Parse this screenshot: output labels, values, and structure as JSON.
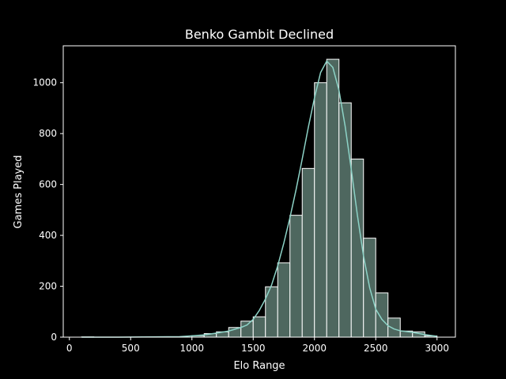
{
  "chart_data": {
    "type": "bar",
    "title": "Benko Gambit Declined",
    "xlabel": "Elo Range",
    "ylabel": "Games Played",
    "xlim": [
      -50,
      3150
    ],
    "ylim": [
      0,
      1145
    ],
    "xticks": [
      0,
      500,
      1000,
      1500,
      2000,
      2500,
      3000
    ],
    "yticks": [
      0,
      200,
      400,
      600,
      800,
      1000
    ],
    "grid": false,
    "bin_width": 100,
    "bins": [
      {
        "x0": 100,
        "value": 1
      },
      {
        "x0": 200,
        "value": 0
      },
      {
        "x0": 300,
        "value": 0
      },
      {
        "x0": 400,
        "value": 0
      },
      {
        "x0": 500,
        "value": 0
      },
      {
        "x0": 600,
        "value": 0
      },
      {
        "x0": 700,
        "value": 0
      },
      {
        "x0": 800,
        "value": 0
      },
      {
        "x0": 900,
        "value": 0
      },
      {
        "x0": 1000,
        "value": 6
      },
      {
        "x0": 1100,
        "value": 14
      },
      {
        "x0": 1200,
        "value": 21
      },
      {
        "x0": 1300,
        "value": 38
      },
      {
        "x0": 1400,
        "value": 63
      },
      {
        "x0": 1500,
        "value": 80
      },
      {
        "x0": 1600,
        "value": 198
      },
      {
        "x0": 1700,
        "value": 292
      },
      {
        "x0": 1800,
        "value": 479
      },
      {
        "x0": 1900,
        "value": 663
      },
      {
        "x0": 2000,
        "value": 1000
      },
      {
        "x0": 2100,
        "value": 1092
      },
      {
        "x0": 2200,
        "value": 921
      },
      {
        "x0": 2300,
        "value": 700
      },
      {
        "x0": 2400,
        "value": 389
      },
      {
        "x0": 2500,
        "value": 174
      },
      {
        "x0": 2600,
        "value": 75
      },
      {
        "x0": 2700,
        "value": 24
      },
      {
        "x0": 2800,
        "value": 21
      },
      {
        "x0": 2900,
        "value": 5
      }
    ],
    "kde": {
      "x": [
        100,
        400,
        700,
        900,
        1000,
        1100,
        1200,
        1300,
        1400,
        1450,
        1500,
        1550,
        1600,
        1650,
        1700,
        1750,
        1800,
        1850,
        1900,
        1950,
        2000,
        2050,
        2100,
        2150,
        2200,
        2250,
        2300,
        2350,
        2400,
        2450,
        2500,
        2550,
        2600,
        2650,
        2700,
        2800,
        2900,
        3000
      ],
      "y": [
        0,
        0,
        1,
        2,
        5,
        9,
        16,
        24,
        38,
        48,
        70,
        105,
        150,
        205,
        280,
        370,
        470,
        580,
        700,
        825,
        940,
        1040,
        1085,
        1060,
        970,
        830,
        660,
        480,
        320,
        195,
        110,
        70,
        45,
        32,
        25,
        19,
        10,
        3
      ]
    },
    "bar_fill": "#4e675f",
    "bar_edge": "#ffffff",
    "kde_color": "#8dd3c7",
    "background": "#000000",
    "foreground": "#ffffff"
  }
}
